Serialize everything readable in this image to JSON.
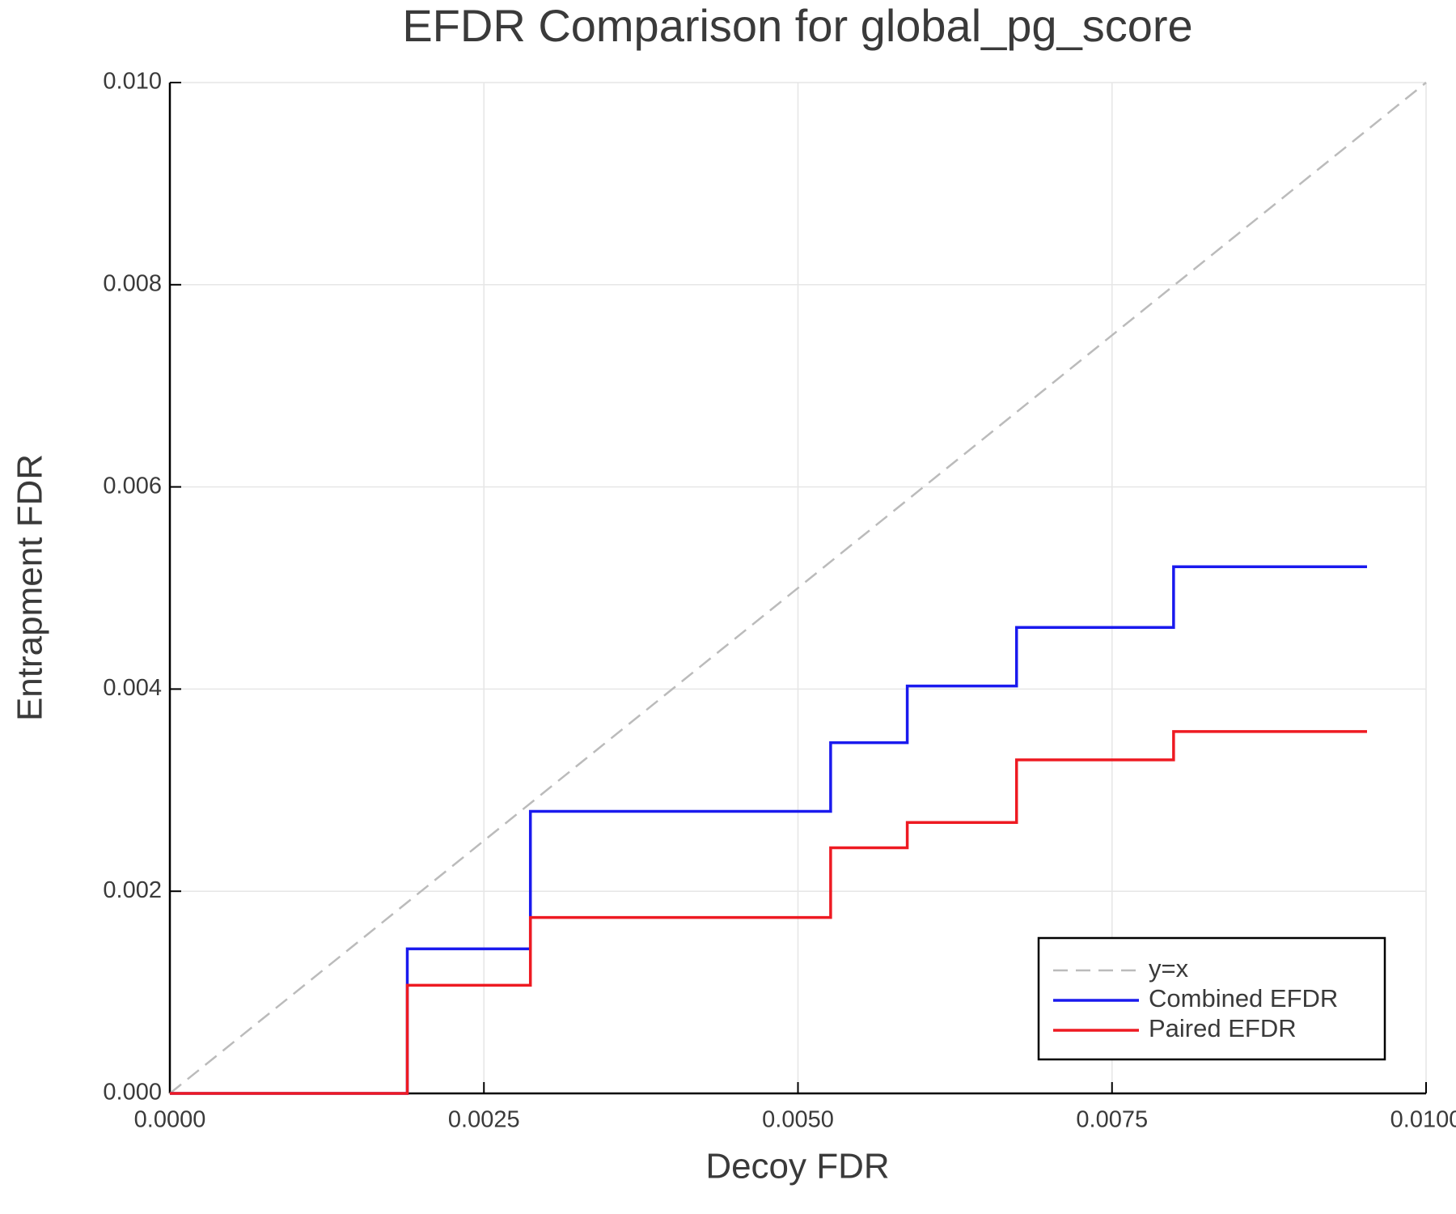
{
  "chart_data": {
    "type": "step",
    "step": "post",
    "title": "EFDR Comparison for global_pg_score",
    "x_label": "Decoy FDR",
    "y_label": "Entrapment FDR",
    "xlim": [
      0,
      0.01
    ],
    "ylim": [
      0,
      0.01
    ],
    "xticks": [
      {
        "value": 0,
        "label": "0.0000"
      },
      {
        "value": 0.0025,
        "label": "0.0025"
      },
      {
        "value": 0.005,
        "label": "0.0050"
      },
      {
        "value": 0.0075,
        "label": "0.0075"
      },
      {
        "value": 0.01,
        "label": "0.0100"
      }
    ],
    "yticks": [
      {
        "value": 0,
        "label": "0.000"
      },
      {
        "value": 0.002,
        "label": "0.002"
      },
      {
        "value": 0.004,
        "label": "0.004"
      },
      {
        "value": 0.006,
        "label": "0.006"
      },
      {
        "value": 0.008,
        "label": "0.008"
      },
      {
        "value": 0.01,
        "label": "0.010"
      }
    ],
    "grid": true,
    "legend": "lower right",
    "series": [
      {
        "name": "y=x",
        "color": "#bbbbbb",
        "dashed": true,
        "step": false,
        "x": [
          0,
          0.01
        ],
        "values": [
          0,
          0.01
        ]
      },
      {
        "name": "Combined EFDR",
        "color": "#1a1aee",
        "dashed": false,
        "step": true,
        "x": [
          0,
          0.00189,
          0.00287,
          0.00526,
          0.00587,
          0.00674,
          0.00799,
          0.00953
        ],
        "values": [
          0,
          0.00143,
          0.00279,
          0.00347,
          0.00403,
          0.00461,
          0.00521,
          0.00521
        ]
      },
      {
        "name": "Paired EFDR",
        "color": "#ee1a22",
        "dashed": false,
        "step": true,
        "x": [
          0,
          0.00189,
          0.00287,
          0.00526,
          0.00587,
          0.00674,
          0.00799,
          0.00953
        ],
        "values": [
          0,
          0.00107,
          0.00174,
          0.00243,
          0.00268,
          0.0033,
          0.00358,
          0.00358
        ]
      }
    ]
  }
}
